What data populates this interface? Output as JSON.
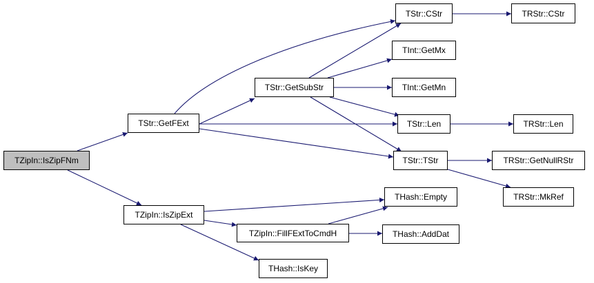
{
  "nodes": {
    "iszipfnm": "TZipIn::IsZipFNm",
    "getfext": "TStr::GetFExt",
    "iszipext": "TZipIn::IsZipExt",
    "getsubstr": "TStr::GetSubStr",
    "cstr": "TStr::CStr",
    "trcstr": "TRStr::CStr",
    "getmx": "TInt::GetMx",
    "getmn": "TInt::GetMn",
    "len": "TStr::Len",
    "trlen": "TRStr::Len",
    "tstr": "TStr::TStr",
    "getnullrstr": "TRStr::GetNullRStr",
    "mkref": "TRStr::MkRef",
    "empty": "THash::Empty",
    "fillfext": "TZipIn::FillFExtToCmdH",
    "adddat": "THash::AddDat",
    "iskey": "THash::IsKey"
  },
  "root": "iszipfnm",
  "edges": [
    [
      "iszipfnm",
      "getfext"
    ],
    [
      "iszipfnm",
      "iszipext"
    ],
    [
      "getfext",
      "cstr"
    ],
    [
      "getfext",
      "getsubstr"
    ],
    [
      "getfext",
      "len"
    ],
    [
      "getfext",
      "tstr"
    ],
    [
      "getsubstr",
      "cstr"
    ],
    [
      "getsubstr",
      "getmx"
    ],
    [
      "getsubstr",
      "getmn"
    ],
    [
      "getsubstr",
      "len"
    ],
    [
      "getsubstr",
      "tstr"
    ],
    [
      "cstr",
      "trcstr"
    ],
    [
      "len",
      "trlen"
    ],
    [
      "tstr",
      "getnullrstr"
    ],
    [
      "tstr",
      "mkref"
    ],
    [
      "iszipext",
      "empty"
    ],
    [
      "iszipext",
      "fillfext"
    ],
    [
      "iszipext",
      "iskey"
    ],
    [
      "fillfext",
      "empty"
    ],
    [
      "fillfext",
      "adddat"
    ]
  ],
  "colors": {
    "edge": "#191970",
    "root_fill": "#bfbfbf",
    "node_border": "#000000"
  }
}
